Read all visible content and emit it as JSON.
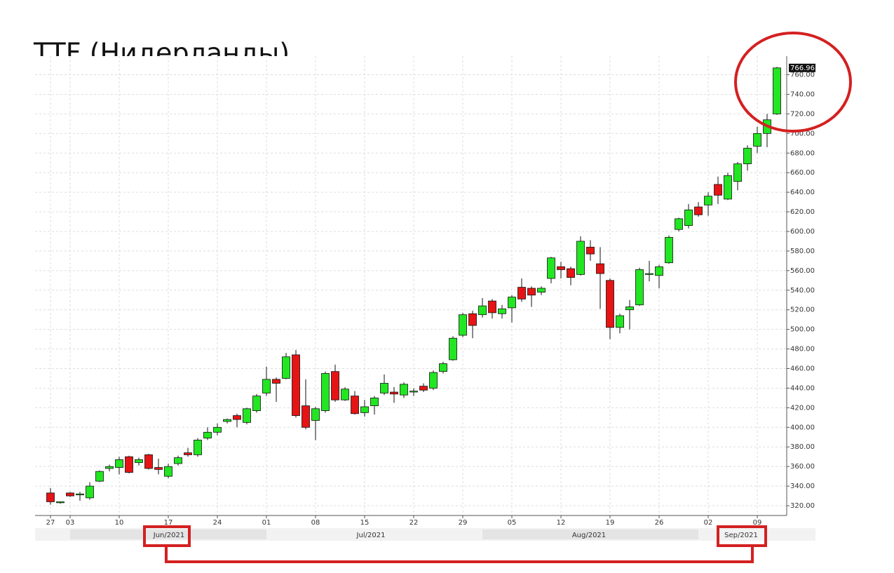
{
  "chart_data": {
    "type": "candlestick",
    "title": "TTF (Нидерланды)",
    "categories": [
      "27",
      null,
      "03",
      null,
      null,
      null,
      null,
      "10",
      null,
      null,
      null,
      null,
      "17",
      null,
      null,
      null,
      null,
      "24",
      null,
      null,
      null,
      null,
      "01",
      null,
      null,
      null,
      null,
      "08",
      null,
      null,
      null,
      null,
      "15",
      null,
      null,
      null,
      null,
      "22",
      null,
      null,
      null,
      null,
      "29",
      null,
      null,
      null,
      null,
      "05",
      null,
      null,
      null,
      null,
      "12",
      null,
      null,
      null,
      null,
      "19",
      null,
      null,
      null,
      null,
      "26",
      null,
      null,
      null,
      null,
      "02",
      null,
      null,
      null,
      null,
      "09",
      null,
      null
    ],
    "months": [
      "Jun/2021",
      "Jul/2021",
      "Aug/2021",
      "Sep/2021"
    ],
    "up_color": "#22e622",
    "down_color": "#e61414",
    "series": {
      "open": [
        333,
        323,
        333,
        331,
        328,
        345,
        358,
        359,
        370,
        364,
        372,
        359,
        350,
        363,
        374,
        372,
        389,
        395,
        406,
        412,
        405,
        417,
        435,
        449,
        450,
        474,
        422,
        407,
        417,
        457,
        428,
        432,
        415,
        422,
        435,
        436,
        433,
        436,
        442,
        440,
        457,
        469,
        494,
        516,
        515,
        529,
        516,
        522,
        543,
        542,
        538,
        552,
        564,
        562,
        556,
        584,
        567,
        550,
        502,
        520,
        525,
        556,
        555,
        568,
        602,
        606,
        625,
        627,
        648,
        633,
        651,
        669,
        687,
        700,
        720
      ],
      "high": [
        338,
        324,
        334,
        334,
        344,
        356,
        362,
        370,
        371,
        369,
        373,
        368,
        363,
        371,
        379,
        389,
        400,
        404,
        409,
        414,
        420,
        434,
        462,
        451,
        476,
        479,
        449,
        421,
        457,
        464,
        441,
        437,
        428,
        432,
        454,
        441,
        446,
        440,
        445,
        458,
        467,
        493,
        517,
        519,
        532,
        531,
        525,
        535,
        552,
        544,
        544,
        574,
        569,
        564,
        595,
        591,
        584,
        552,
        516,
        530,
        563,
        570,
        566,
        596,
        614,
        628,
        630,
        640,
        656,
        660,
        671,
        688,
        707,
        720,
        768
      ],
      "low": [
        321,
        322,
        329,
        325,
        326,
        344,
        355,
        352,
        353,
        361,
        357,
        352,
        348,
        361,
        370,
        370,
        387,
        392,
        404,
        400,
        403,
        415,
        432,
        426,
        449,
        410,
        398,
        387,
        415,
        426,
        427,
        413,
        411,
        413,
        433,
        425,
        430,
        432,
        436,
        438,
        455,
        468,
        492,
        491,
        512,
        511,
        511,
        507,
        528,
        523,
        535,
        547,
        552,
        545,
        555,
        570,
        521,
        490,
        496,
        500,
        524,
        549,
        542,
        567,
        600,
        603,
        615,
        616,
        628,
        632,
        642,
        662,
        680,
        686,
        719
      ],
      "close": [
        324,
        324,
        330,
        332,
        340,
        355,
        360,
        367,
        354,
        367,
        358,
        357,
        360,
        369,
        372,
        387,
        395,
        400,
        408,
        408,
        419,
        432,
        449,
        445,
        472,
        412,
        400,
        419,
        455,
        428,
        439,
        414,
        421,
        430,
        445,
        434,
        444,
        437,
        438,
        456,
        465,
        491,
        515,
        504,
        524,
        517,
        521,
        533,
        531,
        535,
        542,
        573,
        561,
        553,
        590,
        577,
        557,
        502,
        514,
        523,
        561,
        557,
        564,
        594,
        613,
        622,
        617,
        636,
        637,
        657,
        669,
        685,
        700,
        714,
        766.96
      ]
    },
    "ylim": [
      310,
      779
    ],
    "yticks": [
      {
        "value": 320,
        "label": "320.00"
      },
      {
        "value": 340,
        "label": "340.00"
      },
      {
        "value": 360,
        "label": "360.00"
      },
      {
        "value": 380,
        "label": "380.00"
      },
      {
        "value": 400,
        "label": "400.00"
      },
      {
        "value": 420,
        "label": "420.00"
      },
      {
        "value": 440,
        "label": "440.00"
      },
      {
        "value": 460,
        "label": "460.00"
      },
      {
        "value": 480,
        "label": "480.00"
      },
      {
        "value": 500,
        "label": "500.00"
      },
      {
        "value": 520,
        "label": "520.00"
      },
      {
        "value": 540,
        "label": "540.00"
      },
      {
        "value": 560,
        "label": "560.00"
      },
      {
        "value": 580,
        "label": "580.00"
      },
      {
        "value": 600,
        "label": "600.00"
      },
      {
        "value": 620,
        "label": "620.00"
      },
      {
        "value": 640,
        "label": "640.00"
      },
      {
        "value": 660,
        "label": "660.00"
      },
      {
        "value": 680,
        "label": "680.00"
      },
      {
        "value": 700,
        "label": "700.00"
      },
      {
        "value": 720,
        "label": "720.00"
      },
      {
        "value": 740,
        "label": "740.00"
      },
      {
        "value": 760,
        "label": "760.00"
      }
    ],
    "grid": true
  }
}
